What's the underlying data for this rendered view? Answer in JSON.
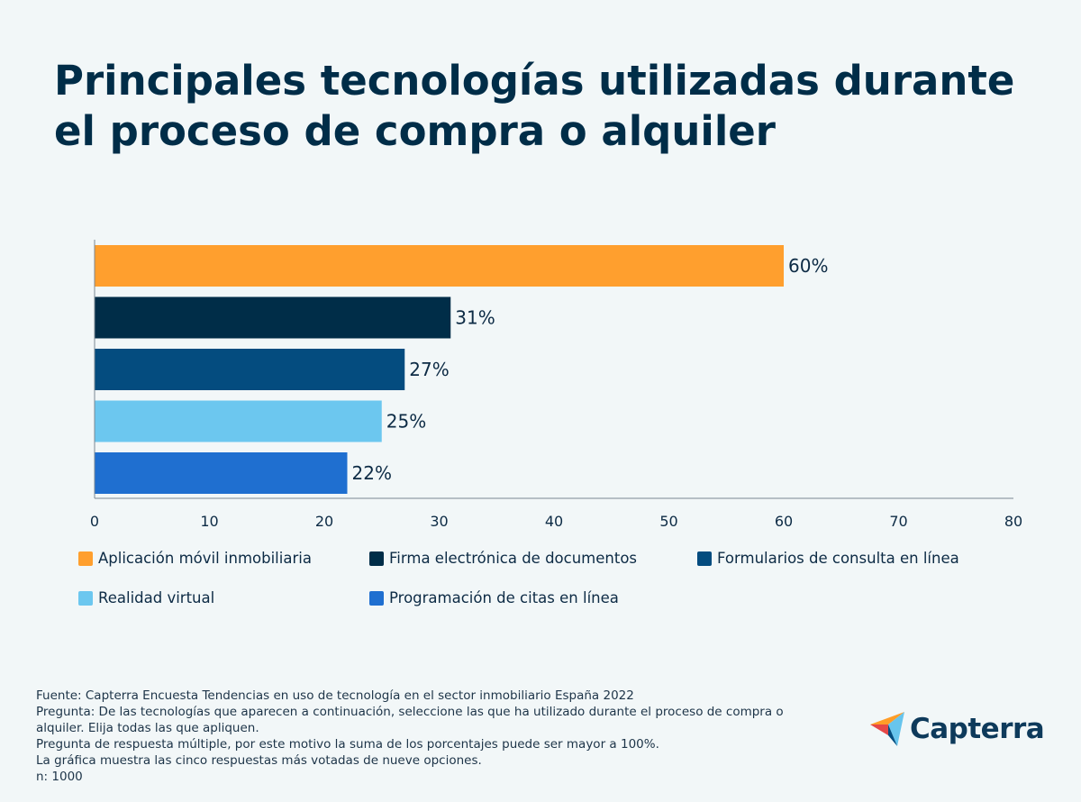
{
  "title": "Principales tecnologías utilizadas durante el proceso de compra o alquiler",
  "chart_data": {
    "type": "bar",
    "orientation": "horizontal",
    "categories": [
      "Aplicación móvil inmobiliaria",
      "Firma electrónica de documentos",
      "Formularios de consulta en línea",
      "Realidad virtual",
      "Programación de citas en línea"
    ],
    "values": [
      60,
      31,
      27,
      25,
      22
    ],
    "value_labels": [
      "60%",
      "31%",
      "27%",
      "25%",
      "22%"
    ],
    "colors": [
      "#ff9f2e",
      "#002d48",
      "#044c7f",
      "#6cc7ef",
      "#1f6fd0"
    ],
    "xlim": [
      0,
      80
    ],
    "xticks": [
      0,
      10,
      20,
      30,
      40,
      50,
      60,
      70,
      80
    ],
    "xlabel": "",
    "ylabel": "",
    "grid": false,
    "legend_position": "bottom"
  },
  "footer": {
    "lines": [
      "Fuente: Capterra Encuesta Tendencias en uso de tecnología en el sector inmobiliario España 2022",
      "Pregunta: De las tecnologías que aparecen a continuación, seleccione las que ha utilizado durante el proceso de compra o alquiler. Elija todas las que apliquen.",
      "Pregunta de respuesta múltiple, por este motivo la suma de los porcentajes puede ser mayor a 100%.",
      "La gráfica muestra las cinco respuestas más votadas de nueve opciones.",
      "n: 1000"
    ]
  },
  "logo": {
    "text": "Capterra",
    "colors": [
      "#ff9d28",
      "#68c5ed",
      "#044d80",
      "#e54747"
    ]
  }
}
